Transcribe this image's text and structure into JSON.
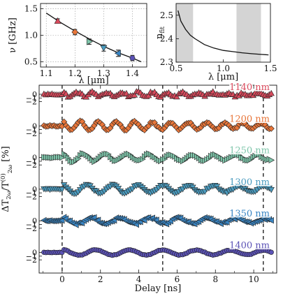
{
  "chart_data": [
    {
      "type": "scatter",
      "panel": "inset-frequency",
      "xlabel": "λ [μm]",
      "ylabel": "ν [GHz]",
      "xlim": [
        1.08,
        1.45
      ],
      "ylim": [
        0.4,
        1.6
      ],
      "xticks": [
        1.1,
        1.2,
        1.3,
        1.4
      ],
      "yticks": [
        0.5,
        1.0,
        1.5
      ],
      "grid": true,
      "points": [
        {
          "x": 1.14,
          "y": 1.27,
          "yerr": 0.04,
          "color": "#d94a5c",
          "marker": "triangle-up"
        },
        {
          "x": 1.2,
          "y": 1.06,
          "yerr": 0.05,
          "color": "#e8763a",
          "marker": "diamond"
        },
        {
          "x": 1.25,
          "y": 0.88,
          "yerr": 0.05,
          "color": "#7fc6ab",
          "marker": "triangle-right"
        },
        {
          "x": 1.3,
          "y": 0.76,
          "yerr": 0.06,
          "color": "#4a9bbf",
          "marker": "triangle-down"
        },
        {
          "x": 1.35,
          "y": 0.66,
          "yerr": 0.06,
          "color": "#3a86c4",
          "marker": "triangle-left"
        },
        {
          "x": 1.4,
          "y": 0.57,
          "yerr": 0.05,
          "color": "#5b52b6",
          "marker": "circle"
        }
      ],
      "fit": {
        "x": [
          1.1,
          1.15,
          1.2,
          1.25,
          1.3,
          1.35,
          1.4,
          1.43
        ],
        "y": [
          1.42,
          1.24,
          1.08,
          0.93,
          0.79,
          0.67,
          0.57,
          0.5
        ]
      }
    },
    {
      "type": "line",
      "panel": "inset-index",
      "xlabel": "λ [μm]",
      "ylabel": "n",
      "ylabel_sub": "fit",
      "xlim": [
        0.5,
        1.5
      ],
      "ylim": [
        2.3,
        2.55
      ],
      "xticks": [
        0.5,
        1.0,
        1.5
      ],
      "yticks": [
        2.3,
        2.4,
        2.5
      ],
      "shaded_bands": [
        [
          0.5,
          0.68
        ],
        [
          1.14,
          1.4
        ]
      ],
      "line": {
        "x": [
          0.52,
          0.55,
          0.6,
          0.65,
          0.7,
          0.8,
          0.9,
          1.0,
          1.1,
          1.2,
          1.3,
          1.4,
          1.48
        ],
        "y": [
          2.52,
          2.475,
          2.44,
          2.415,
          2.4,
          2.375,
          2.36,
          2.35,
          2.345,
          2.34,
          2.336,
          2.333,
          2.331
        ]
      }
    },
    {
      "type": "scatter",
      "panel": "main-traces",
      "xlabel": "Delay [ns]",
      "ylabel": "ΔT/T [%]",
      "ylabel_full": {
        "delta": "ΔT",
        "sub1": "2ω",
        "slash": "/T",
        "sup2": "(0)",
        "sub2": "2ω",
        "unit": "[%]"
      },
      "xlim": [
        -1.2,
        11.2
      ],
      "xticks": [
        0,
        2,
        4,
        6,
        8,
        10
      ],
      "trace_yticks": [
        0,
        -1,
        -2
      ],
      "vlines": [
        0,
        5.25,
        10.5
      ],
      "series": [
        {
          "name": "1140 nm",
          "color": "#d94a5c",
          "marker": "triangle-up",
          "freq_ghz": 1.27,
          "amp": 0.55,
          "decay": 0.05,
          "phase": 0.0,
          "noise": 0.35,
          "offset": 0.0
        },
        {
          "name": "1200 nm",
          "color": "#e8763a",
          "marker": "diamond",
          "freq_ghz": 1.06,
          "amp": 1.3,
          "decay": 0.06,
          "phase": 0.0,
          "noise": 0.25,
          "offset": 0.0
        },
        {
          "name": "1250 nm",
          "color": "#7fc6ab",
          "marker": "triangle-right",
          "freq_ghz": 0.88,
          "amp": 1.1,
          "decay": 0.05,
          "phase": 0.0,
          "noise": 0.2,
          "offset": 0.0
        },
        {
          "name": "1300 nm",
          "color": "#4a9bbf",
          "marker": "triangle-down",
          "freq_ghz": 0.76,
          "amp": 1.2,
          "decay": 0.04,
          "phase": 0.0,
          "noise": 0.2,
          "offset": 0.0
        },
        {
          "name": "1350 nm",
          "color": "#3a86c4",
          "marker": "triangle-left",
          "freq_ghz": 0.66,
          "amp": 0.9,
          "decay": 0.04,
          "phase": 0.0,
          "noise": 0.3,
          "offset": 0.0
        },
        {
          "name": "1400 nm",
          "color": "#5b52b6",
          "marker": "circle",
          "freq_ghz": 0.57,
          "amp": 0.75,
          "decay": 0.02,
          "phase": 0.0,
          "noise": 0.08,
          "offset": 0.0
        }
      ]
    }
  ]
}
